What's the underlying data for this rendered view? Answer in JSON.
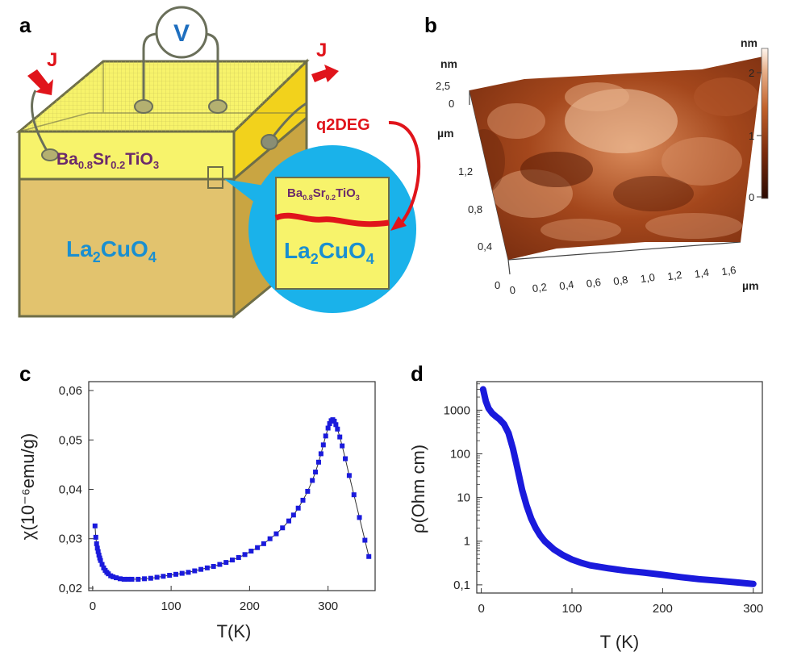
{
  "panels": {
    "a": "a",
    "b": "b",
    "c": "c",
    "d": "d"
  },
  "schematic": {
    "voltmeter": "V",
    "current_in": "J",
    "current_out": "J",
    "q2deg": "q2DEG",
    "film": {
      "base": "Ba",
      "s1": "0.8",
      "mid": "Sr",
      "s2": "0.2",
      "tail": "TiO",
      "s3": "3"
    },
    "substrate": {
      "base": "La",
      "s1": "2",
      "mid": "CuO",
      "s2": "4"
    },
    "colors": {
      "film": "#f7f36b",
      "substrate": "#e2c36e",
      "bubble": "#1ab2ea",
      "q2deg": "#e0141b",
      "voltmeter": "#1f6fbf",
      "text_film": "#6b2a6b",
      "text_sub": "#1a8fd0"
    }
  },
  "afm": {
    "z_unit": "nm",
    "z_ticks": [
      "2,5",
      "0"
    ],
    "y_unit": "µm",
    "y_ticks": [
      "1,2",
      "0,8",
      "0,4",
      "0"
    ],
    "x_unit": "µm",
    "x_ticks": [
      "0",
      "0,2",
      "0,4",
      "0,6",
      "0,8",
      "1,0",
      "1,2",
      "1,4",
      "1,6"
    ],
    "colorbar_unit": "nm",
    "colorbar_ticks": [
      "2",
      "1",
      "0"
    ]
  },
  "chart_data": [
    {
      "type": "scatter",
      "panel": "c",
      "xlabel": "T(K)",
      "ylabel": "χ(10⁻⁶emu/g)",
      "xlim": [
        -5,
        360
      ],
      "ylim": [
        0.0195,
        0.0618
      ],
      "x_ticks": [
        0,
        100,
        200,
        300
      ],
      "x_tick_labels": [
        "0",
        "100",
        "200",
        "300"
      ],
      "y_ticks": [
        0.02,
        0.03,
        0.04,
        0.05,
        0.06
      ],
      "y_tick_labels": [
        "0,02",
        "0,03",
        "0,04",
        "0,05",
        "0,06"
      ],
      "color": "#1a1adc",
      "series": [
        {
          "x": [
            3,
            4,
            5,
            6,
            7,
            8,
            9,
            10,
            12,
            14,
            16,
            18,
            20,
            23,
            26,
            30,
            35,
            40,
            45,
            50,
            58,
            66,
            74,
            82,
            90,
            98,
            106,
            114,
            122,
            130,
            138,
            146,
            154,
            162,
            170,
            178,
            186,
            194,
            202,
            210,
            218,
            226,
            234,
            242,
            250,
            256,
            262,
            268,
            274,
            280,
            284,
            288,
            291,
            294,
            297,
            300,
            302,
            304,
            306,
            308,
            310,
            312,
            315,
            318,
            322,
            327,
            333,
            340,
            347,
            352
          ],
          "y": [
            0.0326,
            0.0303,
            0.029,
            0.0281,
            0.0274,
            0.0267,
            0.0261,
            0.0256,
            0.0248,
            0.0241,
            0.0236,
            0.0232,
            0.0229,
            0.0225,
            0.0223,
            0.0221,
            0.0219,
            0.0218,
            0.0218,
            0.0218,
            0.0218,
            0.0219,
            0.022,
            0.0222,
            0.0224,
            0.0226,
            0.0228,
            0.023,
            0.0232,
            0.0235,
            0.0238,
            0.0241,
            0.0244,
            0.0248,
            0.0252,
            0.0257,
            0.0262,
            0.0268,
            0.0275,
            0.0282,
            0.029,
            0.03,
            0.031,
            0.0322,
            0.0336,
            0.0348,
            0.0362,
            0.0378,
            0.0396,
            0.0418,
            0.0435,
            0.0455,
            0.0472,
            0.049,
            0.0508,
            0.0524,
            0.0533,
            0.0539,
            0.0541,
            0.0538,
            0.0531,
            0.0522,
            0.0506,
            0.0488,
            0.0462,
            0.0428,
            0.0389,
            0.0343,
            0.0297,
            0.0264
          ]
        }
      ]
    },
    {
      "type": "line",
      "panel": "d",
      "xlabel": "T (K)",
      "ylabel": "ρ(Ohm cm)",
      "yscale": "log",
      "xlim": [
        -5,
        310
      ],
      "ylim": [
        0.065,
        4500
      ],
      "x_ticks": [
        0,
        100,
        200,
        300
      ],
      "x_tick_labels": [
        "0",
        "100",
        "200",
        "300"
      ],
      "y_ticks": [
        0.1,
        1,
        10,
        100,
        1000
      ],
      "y_tick_labels": [
        "0,1",
        "1",
        "10",
        "100",
        "1000"
      ],
      "color": "#1a1adc",
      "series": [
        {
          "x": [
            2,
            5,
            8,
            12,
            16,
            20,
            25,
            30,
            35,
            40,
            45,
            50,
            55,
            60,
            65,
            70,
            80,
            90,
            100,
            110,
            120,
            140,
            160,
            180,
            200,
            220,
            240,
            260,
            280,
            300
          ],
          "y": [
            3000,
            1600,
            1100,
            850,
            720,
            620,
            480,
            300,
            130,
            45,
            15,
            6.5,
            3.3,
            2.0,
            1.35,
            1.0,
            0.65,
            0.48,
            0.38,
            0.32,
            0.28,
            0.24,
            0.21,
            0.19,
            0.17,
            0.15,
            0.135,
            0.125,
            0.115,
            0.105
          ]
        }
      ]
    }
  ]
}
